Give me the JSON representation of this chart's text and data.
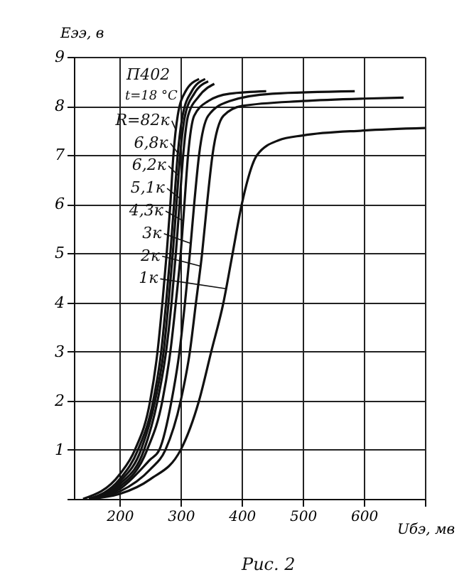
{
  "chart_data": {
    "type": "line",
    "xlabel": "Uбэ, мв",
    "ylabel": "Eээ, в",
    "annotations": [
      "П402",
      "t=18 °C",
      "Рис. 2"
    ],
    "xlim": [
      125,
      700
    ],
    "xticks": [
      200,
      300,
      400,
      500,
      600,
      {
        "value": 700,
        "label": null
      }
    ],
    "ylim": [
      0,
      9
    ],
    "yticks": [
      {
        "value": 0,
        "label": null
      },
      1,
      2,
      3,
      4,
      5,
      6,
      7,
      8,
      9
    ],
    "grid": true,
    "legend": "top left",
    "marker": "none",
    "line_style": "solid",
    "series": [
      {
        "name": "R=82к",
        "color": "#111111",
        "x": [
          140,
          200,
          225,
          250,
          262,
          270,
          277,
          283,
          288,
          295,
          308,
          330
        ],
        "values": [
          0,
          0.5,
          1,
          2,
          3,
          4,
          5,
          6,
          7,
          7.8,
          8.3,
          8.55
        ]
      },
      {
        "name": "6,8к",
        "color": "#111111",
        "x": [
          150,
          200,
          230,
          255,
          268,
          276,
          283,
          289,
          295,
          303,
          318,
          340
        ],
        "values": [
          0,
          0.4,
          1,
          2,
          3,
          4,
          5,
          6,
          7,
          7.8,
          8.3,
          8.55
        ]
      },
      {
        "name": "6,2к",
        "color": "#111111",
        "x": [
          150,
          200,
          235,
          258,
          272,
          280,
          287,
          293,
          299,
          307,
          322,
          345
        ],
        "values": [
          0,
          0.35,
          1,
          2,
          3,
          4,
          5,
          6,
          7,
          7.8,
          8.25,
          8.5
        ]
      },
      {
        "name": "5,1к",
        "color": "#111111",
        "x": [
          150,
          200,
          240,
          262,
          276,
          285,
          292,
          298,
          304,
          312,
          330,
          355
        ],
        "values": [
          0,
          0.3,
          1,
          2,
          3,
          4,
          5,
          6,
          7,
          7.8,
          8.2,
          8.45
        ]
      },
      {
        "name": "4,3к",
        "color": "#111111",
        "x": [
          150,
          200,
          245,
          270,
          283,
          292,
          300,
          306,
          312,
          322,
          345,
          380,
          440
        ],
        "values": [
          0,
          0.25,
          1,
          2,
          3,
          4,
          5,
          6,
          7,
          7.8,
          8.1,
          8.25,
          8.3
        ]
      },
      {
        "name": "3к",
        "color": "#111111",
        "x": [
          150,
          200,
          250,
          265,
          285,
          298,
          307,
          315,
          322,
          330,
          345,
          380,
          450,
          585
        ],
        "values": [
          0,
          0.2,
          0.8,
          1,
          2,
          3,
          4,
          5,
          6,
          7,
          7.8,
          8.1,
          8.25,
          8.3
        ]
      },
      {
        "name": "2к",
        "color": "#111111",
        "x": [
          150,
          200,
          250,
          275,
          300,
          315,
          325,
          335,
          343,
          352,
          370,
          400,
          500,
          600,
          665
        ],
        "values": [
          0,
          0.15,
          0.6,
          1,
          2,
          3,
          4,
          5,
          6,
          7,
          7.8,
          8.0,
          8.1,
          8.15,
          8.17
        ]
      },
      {
        "name": "1к",
        "color": "#111111",
        "x": [
          150,
          200,
          250,
          300,
          330,
          350,
          370,
          385,
          400,
          425,
          460,
          500,
          600,
          700
        ],
        "values": [
          0,
          0.1,
          0.4,
          1,
          2,
          3,
          4,
          5,
          6,
          7,
          7.3,
          7.4,
          7.5,
          7.55
        ]
      }
    ]
  }
}
